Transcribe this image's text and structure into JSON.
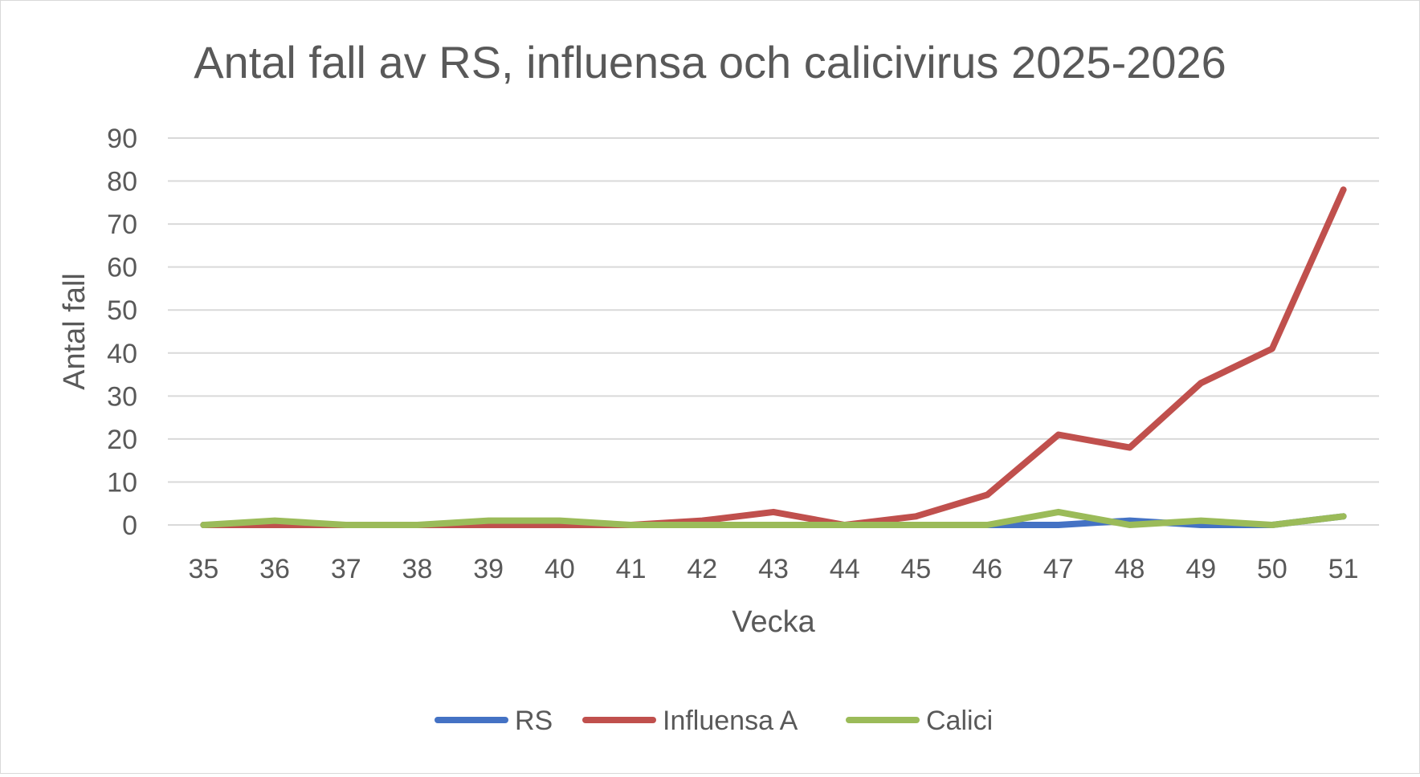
{
  "chart_data": {
    "type": "line",
    "title": "Antal fall av RS, influensa och calicivirus 2025-2026",
    "xlabel": "Vecka",
    "ylabel": "Antal fall",
    "categories": [
      "35",
      "36",
      "37",
      "38",
      "39",
      "40",
      "41",
      "42",
      "43",
      "44",
      "45",
      "46",
      "47",
      "48",
      "49",
      "50",
      "51"
    ],
    "ylim": [
      0,
      90
    ],
    "yticks": [
      "0",
      "10",
      "20",
      "30",
      "40",
      "50",
      "60",
      "70",
      "80",
      "90"
    ],
    "grid": true,
    "legend_position": "bottom",
    "series": [
      {
        "name": "RS",
        "color": "#4472c4",
        "values": [
          0,
          0,
          0,
          0,
          0,
          0,
          0,
          0,
          0,
          0,
          0,
          0,
          0,
          1,
          0,
          0,
          2
        ]
      },
      {
        "name": "Influensa A",
        "color": "#c0504d",
        "values": [
          0,
          0,
          0,
          0,
          0,
          0,
          0,
          1,
          3,
          0,
          2,
          7,
          21,
          18,
          33,
          41,
          78
        ]
      },
      {
        "name": "Calici",
        "color": "#9bbb59",
        "values": [
          0,
          1,
          0,
          0,
          1,
          1,
          0,
          0,
          0,
          0,
          0,
          0,
          3,
          0,
          1,
          0,
          2
        ]
      }
    ]
  }
}
